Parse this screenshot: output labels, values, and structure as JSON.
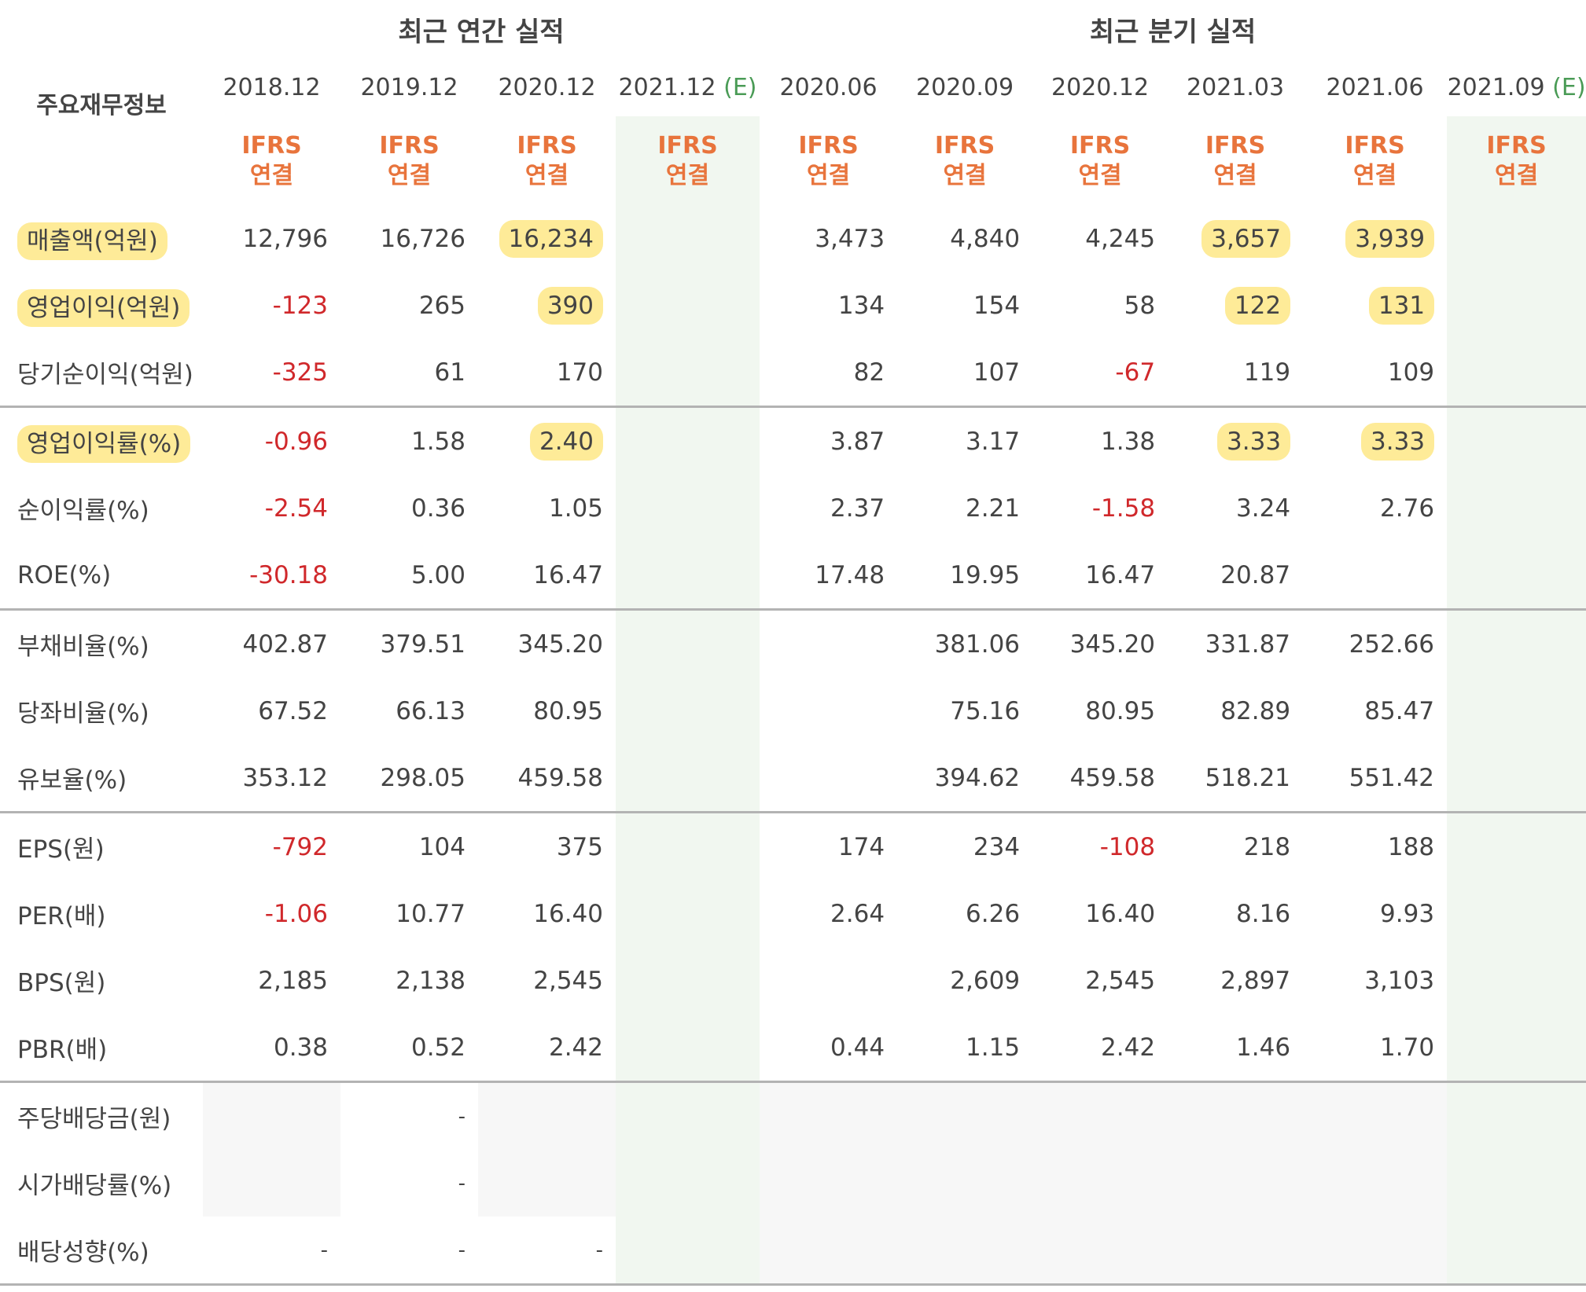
{
  "table": {
    "corner_label": "주요재무정보",
    "groups": {
      "annual": "최근 연간 실적",
      "quarterly": "최근 분기 실적"
    },
    "estimate_mark": "(E)",
    "periods": [
      {
        "date": "2018.12",
        "est": false
      },
      {
        "date": "2019.12",
        "est": false
      },
      {
        "date": "2020.12",
        "est": false
      },
      {
        "date": "2021.12",
        "est": true
      },
      {
        "date": "2020.06",
        "est": false
      },
      {
        "date": "2020.09",
        "est": false
      },
      {
        "date": "2020.12",
        "est": false
      },
      {
        "date": "2021.03",
        "est": false
      },
      {
        "date": "2021.06",
        "est": false
      },
      {
        "date": "2021.09",
        "est": true
      }
    ],
    "ifrs_top": "IFRS",
    "ifrs_bottom": "연결",
    "rows": [
      {
        "label": "매출액(억원)",
        "values": [
          "12,796",
          "16,726",
          "16,234",
          "",
          "3,473",
          "4,840",
          "4,245",
          "3,657",
          "3,939",
          ""
        ]
      },
      {
        "label": "영업이익(억원)",
        "values": [
          "-123",
          "265",
          "390",
          "",
          "134",
          "154",
          "58",
          "122",
          "131",
          ""
        ]
      },
      {
        "label": "당기순이익(억원)",
        "values": [
          "-325",
          "61",
          "170",
          "",
          "82",
          "107",
          "-67",
          "119",
          "109",
          ""
        ]
      },
      {
        "label": "영업이익률(%)",
        "values": [
          "-0.96",
          "1.58",
          "2.40",
          "",
          "3.87",
          "3.17",
          "1.38",
          "3.33",
          "3.33",
          ""
        ]
      },
      {
        "label": "순이익률(%)",
        "values": [
          "-2.54",
          "0.36",
          "1.05",
          "",
          "2.37",
          "2.21",
          "-1.58",
          "3.24",
          "2.76",
          ""
        ]
      },
      {
        "label": "ROE(%)",
        "values": [
          "-30.18",
          "5.00",
          "16.47",
          "",
          "17.48",
          "19.95",
          "16.47",
          "20.87",
          "",
          ""
        ]
      },
      {
        "label": "부채비율(%)",
        "values": [
          "402.87",
          "379.51",
          "345.20",
          "",
          "",
          "381.06",
          "345.20",
          "331.87",
          "252.66",
          ""
        ]
      },
      {
        "label": "당좌비율(%)",
        "values": [
          "67.52",
          "66.13",
          "80.95",
          "",
          "",
          "75.16",
          "80.95",
          "82.89",
          "85.47",
          ""
        ]
      },
      {
        "label": "유보율(%)",
        "values": [
          "353.12",
          "298.05",
          "459.58",
          "",
          "",
          "394.62",
          "459.58",
          "518.21",
          "551.42",
          ""
        ]
      },
      {
        "label": "EPS(원)",
        "values": [
          "-792",
          "104",
          "375",
          "",
          "174",
          "234",
          "-108",
          "218",
          "188",
          ""
        ]
      },
      {
        "label": "PER(배)",
        "values": [
          "-1.06",
          "10.77",
          "16.40",
          "",
          "2.64",
          "6.26",
          "16.40",
          "8.16",
          "9.93",
          ""
        ]
      },
      {
        "label": "BPS(원)",
        "values": [
          "2,185",
          "2,138",
          "2,545",
          "",
          "",
          "2,609",
          "2,545",
          "2,897",
          "3,103",
          ""
        ]
      },
      {
        "label": "PBR(배)",
        "values": [
          "0.38",
          "0.52",
          "2.42",
          "",
          "0.44",
          "1.15",
          "2.42",
          "1.46",
          "1.70",
          ""
        ]
      },
      {
        "label": "주당배당금(원)",
        "values": [
          "",
          "-",
          "",
          "",
          "",
          "",
          "",
          "",
          "",
          ""
        ]
      },
      {
        "label": "시가배당률(%)",
        "values": [
          "",
          "-",
          "",
          "",
          "",
          "",
          "",
          "",
          "",
          ""
        ]
      },
      {
        "label": "배당성향(%)",
        "values": [
          "-",
          "-",
          "-",
          "",
          "",
          "",
          "",
          "",
          "",
          ""
        ]
      }
    ],
    "highlight_color": "#fde27a",
    "negative_color": "#d0282b",
    "ifrs_color": "#e8743c",
    "estimate_color": "#4a9b56"
  }
}
